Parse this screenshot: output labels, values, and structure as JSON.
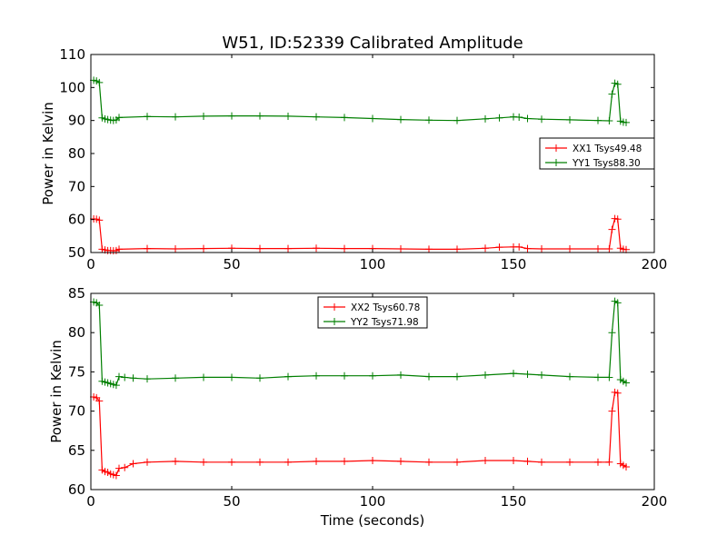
{
  "figure": {
    "title": "W51, ID:52339 Calibrated Amplitude",
    "xlabel": "Time (seconds)"
  },
  "colors": {
    "red": "#ff0000",
    "green": "#007f00"
  },
  "chart_data": [
    {
      "type": "line",
      "title": "W51, ID:52339 Calibrated Amplitude",
      "xlabel": "",
      "ylabel": "Power in Kelvin",
      "xlim": [
        0,
        200
      ],
      "ylim": [
        50,
        110
      ],
      "xticks": [
        "0",
        "50",
        "100",
        "150",
        "200"
      ],
      "yticks": [
        "50",
        "60",
        "70",
        "80",
        "90",
        "100",
        "110"
      ],
      "grid": false,
      "legend_position": "center-right",
      "marker": "+",
      "series": [
        {
          "name": "XX1 Tsys49.48",
          "color": "#ff0000",
          "x": [
            1,
            2,
            3,
            4,
            5,
            6,
            7,
            8,
            9,
            10,
            20,
            30,
            40,
            50,
            60,
            70,
            80,
            90,
            100,
            110,
            120,
            130,
            140,
            145,
            150,
            152,
            155,
            160,
            170,
            180,
            184,
            185,
            186,
            187,
            188,
            189,
            190
          ],
          "y": [
            60.2,
            60.1,
            59.8,
            51.0,
            50.8,
            50.6,
            50.6,
            50.5,
            50.6,
            51.0,
            51.2,
            51.1,
            51.2,
            51.3,
            51.2,
            51.2,
            51.3,
            51.2,
            51.2,
            51.1,
            51.0,
            51.0,
            51.3,
            51.6,
            51.7,
            51.7,
            51.2,
            51.1,
            51.1,
            51.1,
            51.1,
            57.0,
            60.3,
            60.1,
            51.3,
            51.0,
            50.9
          ]
        },
        {
          "name": "YY1 Tsys88.30",
          "color": "#007f00",
          "x": [
            1,
            2,
            3,
            4,
            5,
            6,
            7,
            8,
            9,
            10,
            20,
            30,
            40,
            50,
            60,
            70,
            80,
            90,
            100,
            110,
            120,
            130,
            140,
            145,
            150,
            152,
            155,
            160,
            170,
            180,
            184,
            185,
            186,
            187,
            188,
            189,
            190
          ],
          "y": [
            102.2,
            102.0,
            101.5,
            90.8,
            90.5,
            90.3,
            90.1,
            90.0,
            90.2,
            90.9,
            91.2,
            91.1,
            91.3,
            91.4,
            91.4,
            91.3,
            91.1,
            90.9,
            90.6,
            90.3,
            90.1,
            90.0,
            90.5,
            90.8,
            91.1,
            91.0,
            90.6,
            90.4,
            90.2,
            90.0,
            89.9,
            98.0,
            101.3,
            101.0,
            89.8,
            89.5,
            89.4
          ]
        }
      ]
    },
    {
      "type": "line",
      "title": "",
      "xlabel": "Time (seconds)",
      "ylabel": "Power in Kelvin",
      "xlim": [
        0,
        200
      ],
      "ylim": [
        60,
        85
      ],
      "xticks": [
        "0",
        "50",
        "100",
        "150",
        "200"
      ],
      "yticks": [
        "60",
        "65",
        "70",
        "75",
        "80",
        "85"
      ],
      "grid": false,
      "legend_position": "top-center",
      "marker": "+",
      "series": [
        {
          "name": "XX2 Tsys60.78",
          "color": "#ff0000",
          "x": [
            1,
            2,
            3,
            4,
            5,
            6,
            7,
            8,
            9,
            10,
            12,
            15,
            20,
            30,
            40,
            50,
            60,
            70,
            80,
            90,
            100,
            110,
            120,
            130,
            140,
            150,
            155,
            160,
            170,
            180,
            184,
            185,
            186,
            187,
            188,
            189,
            190
          ],
          "y": [
            71.8,
            71.7,
            71.3,
            62.5,
            62.3,
            62.2,
            62.0,
            61.9,
            61.8,
            62.7,
            62.8,
            63.3,
            63.5,
            63.6,
            63.5,
            63.5,
            63.5,
            63.5,
            63.6,
            63.6,
            63.7,
            63.6,
            63.5,
            63.5,
            63.7,
            63.7,
            63.6,
            63.5,
            63.5,
            63.5,
            63.5,
            70.0,
            72.4,
            72.3,
            63.3,
            63.1,
            62.9
          ]
        },
        {
          "name": "YY2 Tsys71.98",
          "color": "#007f00",
          "x": [
            1,
            2,
            3,
            4,
            5,
            6,
            7,
            8,
            9,
            10,
            12,
            15,
            20,
            30,
            40,
            50,
            60,
            70,
            80,
            90,
            100,
            110,
            120,
            130,
            140,
            150,
            155,
            160,
            170,
            180,
            184,
            185,
            186,
            187,
            188,
            189,
            190
          ],
          "y": [
            83.9,
            83.8,
            83.5,
            73.8,
            73.7,
            73.6,
            73.5,
            73.4,
            73.3,
            74.4,
            74.3,
            74.2,
            74.1,
            74.2,
            74.3,
            74.3,
            74.2,
            74.4,
            74.5,
            74.5,
            74.5,
            74.6,
            74.4,
            74.4,
            74.6,
            74.8,
            74.7,
            74.6,
            74.4,
            74.3,
            74.3,
            80.0,
            84.0,
            83.8,
            74.0,
            73.8,
            73.6
          ]
        }
      ]
    }
  ]
}
